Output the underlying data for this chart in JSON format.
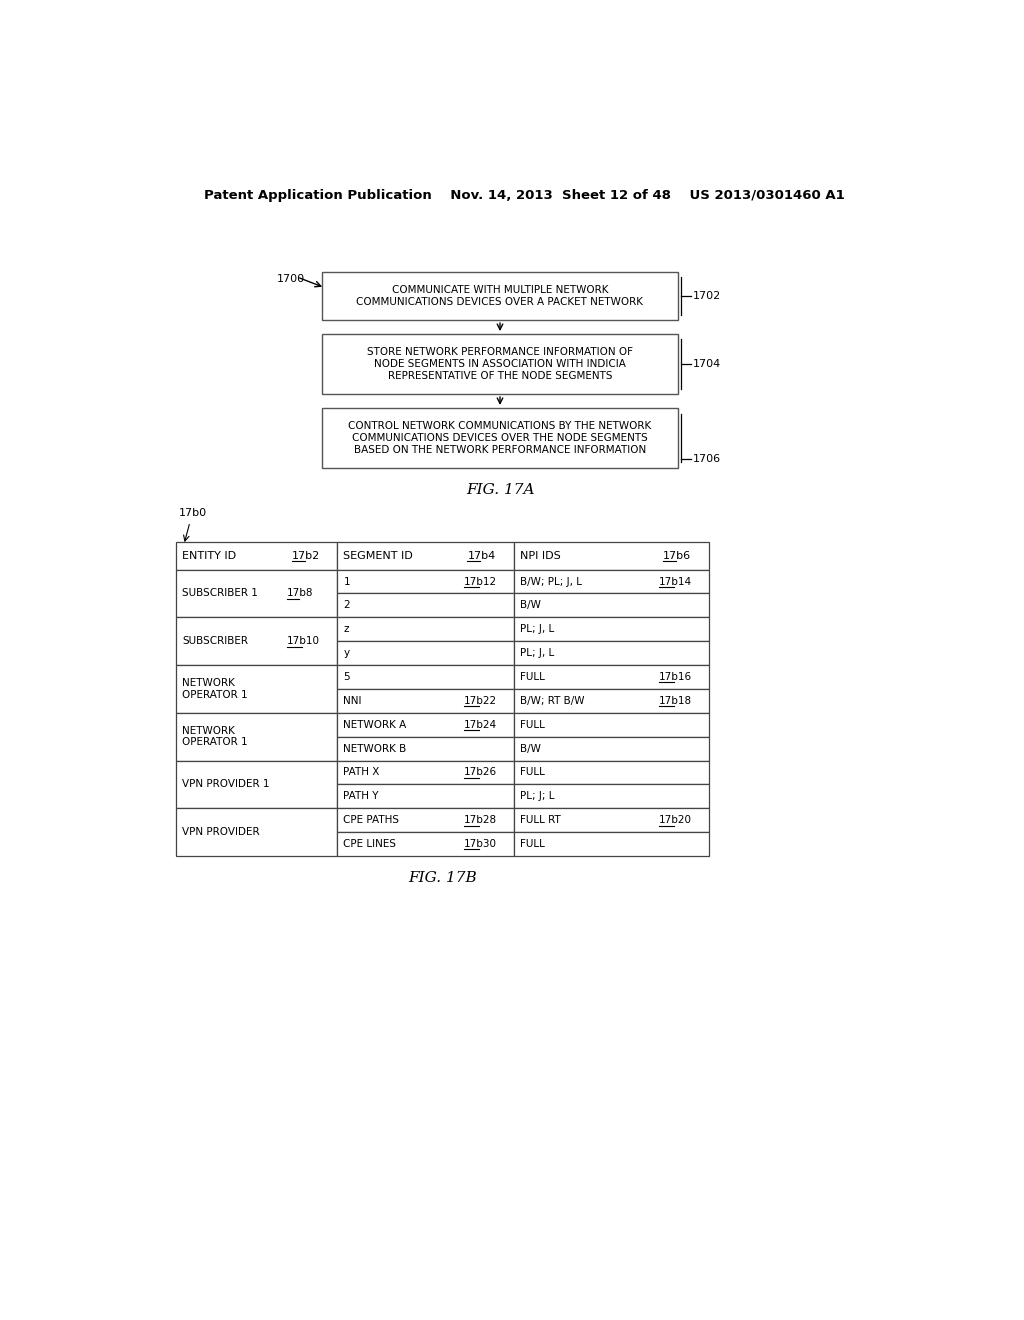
{
  "bg_color": "#ffffff",
  "header_text": "Patent Application Publication    Nov. 14, 2013  Sheet 12 of 48    US 2013/0301460 A1",
  "fig17a_label": "FIG. 17A",
  "fig17b_label": "FIG. 17B",
  "flow_label": "1700",
  "boxes": [
    {
      "id": "1702",
      "text": "COMMUNICATE WITH MULTIPLE NETWORK\nCOMMUNICATIONS DEVICES OVER A PACKET NETWORK",
      "ref": "1702"
    },
    {
      "id": "1704",
      "text": "STORE NETWORK PERFORMANCE INFORMATION OF\nNODE SEGMENTS IN ASSOCIATION WITH INDICIA\nREPRESENTATIVE OF THE NODE SEGMENTS",
      "ref": "1704"
    },
    {
      "id": "1706",
      "text": "CONTROL NETWORK COMMUNICATIONS BY THE NETWORK\nCOMMUNICATIONS DEVICES OVER THE NODE SEGMENTS\nBASED ON THE NETWORK PERFORMANCE INFORMATION",
      "ref": "1706"
    }
  ],
  "table_label": "17b0",
  "table_rows": [
    {
      "entity": "SUBSCRIBER 1",
      "entity_ref": "17b8",
      "segments": [
        {
          "seg": "1",
          "seg_ref": "17b12",
          "npi": "B/W; PL; J, L",
          "npi_ref": "17b14"
        },
        {
          "seg": "2",
          "seg_ref": "",
          "npi": "B/W",
          "npi_ref": ""
        }
      ]
    },
    {
      "entity": "SUBSCRIBER",
      "entity_ref": "17b10",
      "segments": [
        {
          "seg": "z",
          "seg_ref": "",
          "npi": "PL; J, L",
          "npi_ref": ""
        },
        {
          "seg": "y",
          "seg_ref": "",
          "npi": "PL; J, L",
          "npi_ref": ""
        }
      ]
    },
    {
      "entity": "NETWORK\nOPERATOR 1",
      "entity_ref": "",
      "segments": [
        {
          "seg": "5",
          "seg_ref": "",
          "npi": "FULL",
          "npi_ref": "17b16"
        },
        {
          "seg": "NNI",
          "seg_ref": "17b22",
          "npi": "B/W; RT B/W",
          "npi_ref": "17b18"
        }
      ]
    },
    {
      "entity": "NETWORK\nOPERATOR 1",
      "entity_ref": "",
      "segments": [
        {
          "seg": "NETWORK A",
          "seg_ref": "17b24",
          "npi": "FULL",
          "npi_ref": ""
        },
        {
          "seg": "NETWORK B",
          "seg_ref": "",
          "npi": "B/W",
          "npi_ref": ""
        }
      ]
    },
    {
      "entity": "VPN PROVIDER 1",
      "entity_ref": "",
      "segments": [
        {
          "seg": "PATH X",
          "seg_ref": "17b26",
          "npi": "FULL",
          "npi_ref": ""
        },
        {
          "seg": "PATH Y",
          "seg_ref": "",
          "npi": "PL; J; L",
          "npi_ref": ""
        }
      ]
    },
    {
      "entity": "VPN PROVIDER",
      "entity_ref": "",
      "segments": [
        {
          "seg": "CPE PATHS",
          "seg_ref": "17b28",
          "npi": "FULL RT",
          "npi_ref": "17b20"
        },
        {
          "seg": "CPE LINES",
          "seg_ref": "17b30",
          "npi": "FULL",
          "npi_ref": ""
        }
      ]
    }
  ]
}
